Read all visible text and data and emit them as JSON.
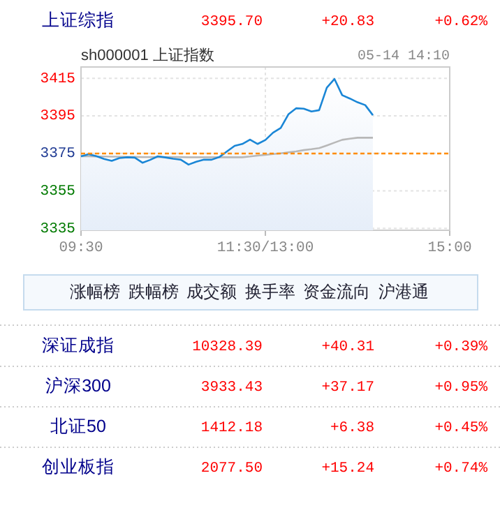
{
  "chart_data": [
    {
      "type": "other",
      "annotations": [
        "上证综指",
        "3395.70",
        "+20.83",
        "+0.62%"
      ]
    },
    {
      "type": "area",
      "title": "sh000001  上证指数",
      "subtitle": "05-14 14:10",
      "categories": [
        "09:30",
        null,
        null,
        null,
        null,
        null,
        null,
        null,
        null,
        null,
        null,
        null,
        null,
        null,
        null,
        null,
        null,
        null,
        null,
        null,
        null,
        null,
        null,
        null,
        "11:30/13:00",
        null,
        null,
        null,
        null,
        null,
        null,
        null,
        null,
        null,
        null,
        null,
        null,
        null,
        null,
        null,
        null,
        null,
        null,
        null,
        null,
        null,
        null,
        null,
        "15:00"
      ],
      "ylim": [
        3334,
        3421
      ],
      "yticks": [
        3335,
        3355,
        3375,
        3395,
        3415
      ],
      "grid": true,
      "ref_lines": [
        {
          "axis": "y",
          "value": 3374.87,
          "color": "#ff8c00",
          "line_style": "dashed"
        }
      ],
      "series": [
        {
          "type": "area",
          "color": "#1a86d6",
          "values": [
            3373.4,
            3374.5,
            3373.5,
            3372,
            3371,
            3372.5,
            3372.9,
            3372.7,
            3370,
            3371.5,
            3373.4,
            3372.8,
            3372.1,
            3371.6,
            3369,
            3370.5,
            3371.6,
            3371.6,
            3373,
            3376,
            3379,
            3380,
            3382.3,
            3380,
            3382.1,
            3386,
            3388.5,
            3395.8,
            3399,
            3398.8,
            3397.3,
            3398,
            3410,
            3414.6,
            3406,
            3404.2,
            3402.2,
            3400.7,
            3395.3,
            null,
            null,
            null,
            null,
            null,
            null,
            null,
            null,
            null,
            null
          ]
        },
        {
          "type": "line",
          "color": "#b8b8b8",
          "values": [
            3373.4,
            3373.4,
            3373.3,
            3373.3,
            3373.2,
            3373.2,
            3373.1,
            3373.1,
            3373,
            3373,
            3373,
            3373,
            3373,
            3373,
            3372.9,
            3372.9,
            3372.9,
            3372.9,
            3372.9,
            3372.9,
            3372.9,
            3372.9,
            3373.3,
            3373.8,
            3374.2,
            3374.6,
            3375,
            3375.5,
            3376,
            3376.7,
            3377.2,
            3377.8,
            3379.2,
            3380.7,
            3382.2,
            3382.8,
            3383.3,
            3383.3,
            3383.3,
            null,
            null,
            null,
            null,
            null,
            null,
            null,
            null,
            null,
            null
          ]
        }
      ]
    },
    {
      "type": "other",
      "annotations": [
        "涨幅榜",
        "跌幅榜",
        "成交额",
        "换手率",
        "资金流向",
        "沪港通"
      ]
    },
    {
      "type": "other",
      "annotations": [
        "深证成指",
        "10328.39",
        "+40.31",
        "+0.39%",
        "沪深300",
        "3933.43",
        "+37.17",
        "+0.95%",
        "北证50",
        "1412.18",
        "+6.38",
        "+0.45%",
        "创业板指",
        "2077.50",
        "+15.24",
        "+0.74%"
      ]
    }
  ]
}
